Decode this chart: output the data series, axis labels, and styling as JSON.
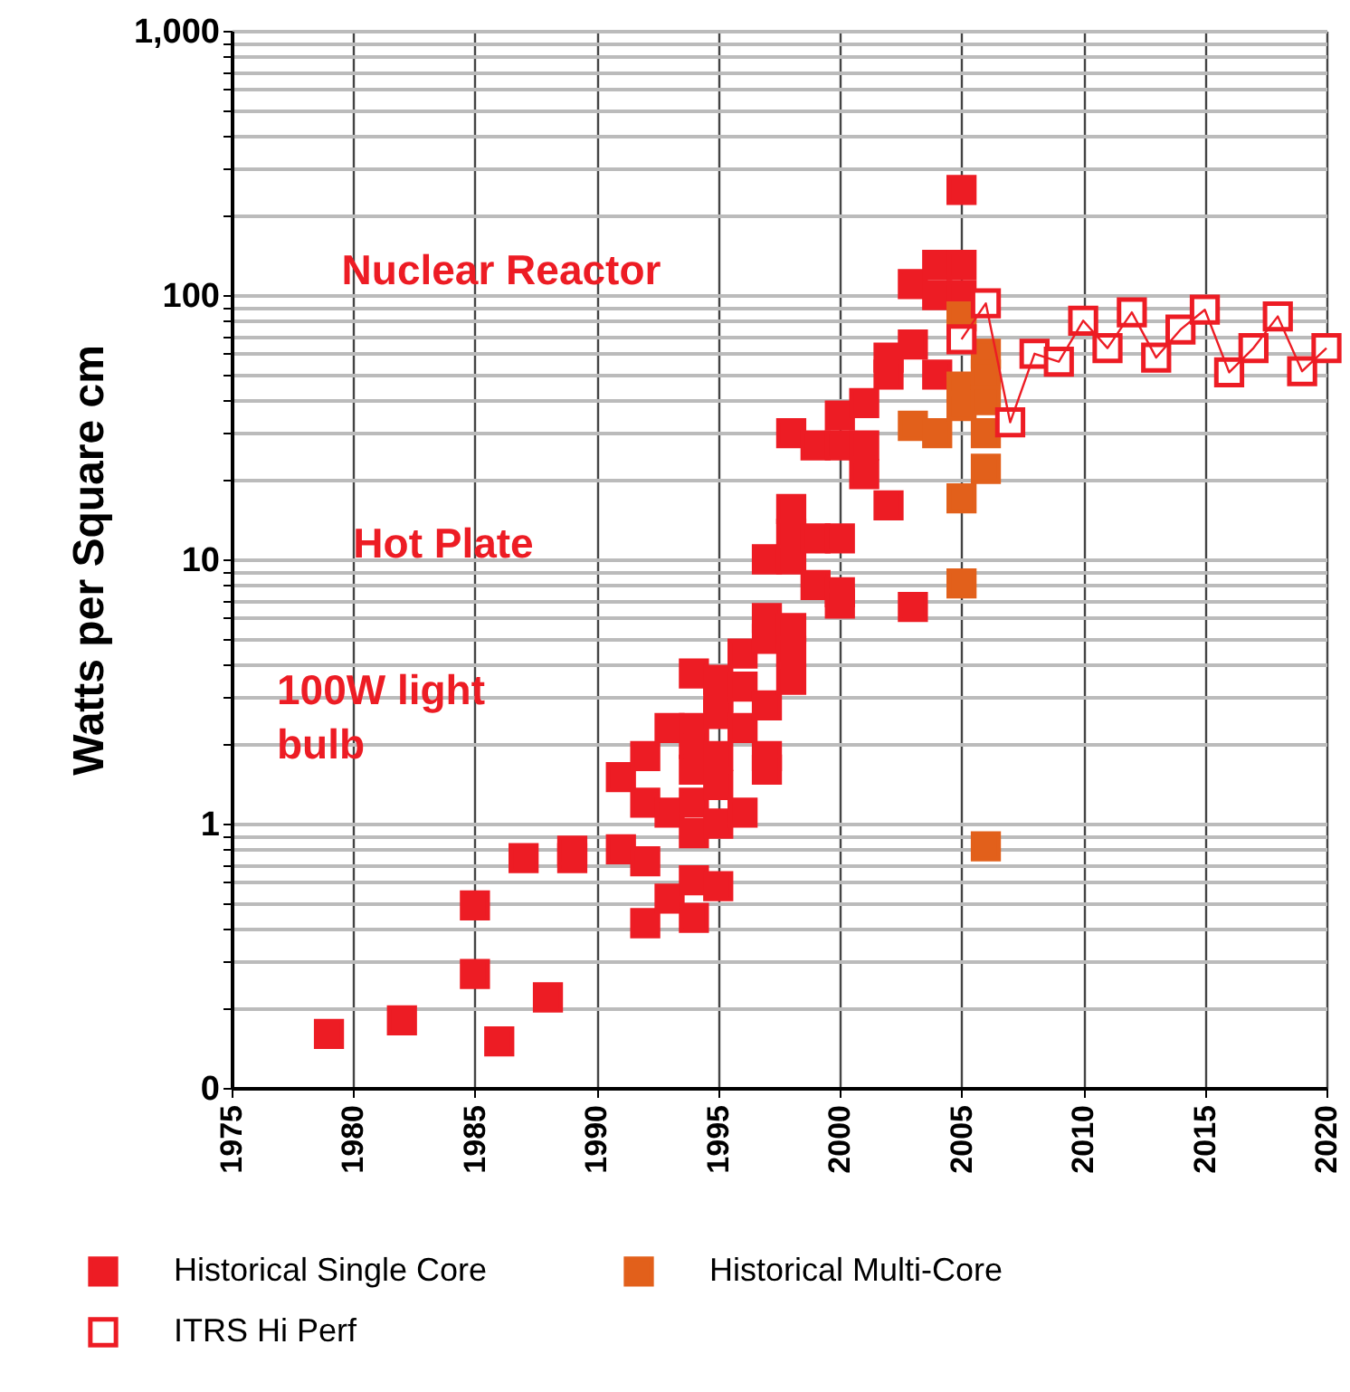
{
  "chart_data": {
    "type": "scatter",
    "ylabel": "Watts per Square cm",
    "log": "y",
    "grid": true,
    "legend": "bottom",
    "marker": "square",
    "xlim": [
      1975,
      2020
    ],
    "xticks": [
      1975,
      1980,
      1985,
      1990,
      1995,
      2000,
      2005,
      2010,
      2015,
      2020
    ],
    "ylim": [
      0.1,
      1000
    ],
    "yticks": [
      {
        "value": 0.1,
        "label": "0"
      },
      {
        "value": 0.2,
        "label": null
      },
      {
        "value": 0.3,
        "label": null
      },
      {
        "value": 0.4,
        "label": null
      },
      {
        "value": 0.5,
        "label": null
      },
      {
        "value": 0.6,
        "label": null
      },
      {
        "value": 0.7,
        "label": null
      },
      {
        "value": 0.8,
        "label": null
      },
      {
        "value": 0.9,
        "label": null
      },
      1,
      {
        "value": 2,
        "label": null
      },
      {
        "value": 3,
        "label": null
      },
      {
        "value": 4,
        "label": null
      },
      {
        "value": 5,
        "label": null
      },
      {
        "value": 6,
        "label": null
      },
      {
        "value": 7,
        "label": null
      },
      {
        "value": 8,
        "label": null
      },
      {
        "value": 9,
        "label": null
      },
      10,
      {
        "value": 20,
        "label": null
      },
      {
        "value": 30,
        "label": null
      },
      {
        "value": 40,
        "label": null
      },
      {
        "value": 50,
        "label": null
      },
      {
        "value": 60,
        "label": null
      },
      {
        "value": 70,
        "label": null
      },
      {
        "value": 80,
        "label": null
      },
      {
        "value": 90,
        "label": null
      },
      100,
      {
        "value": 200,
        "label": null
      },
      {
        "value": 300,
        "label": null
      },
      {
        "value": 400,
        "label": null
      },
      {
        "value": 500,
        "label": null
      },
      {
        "value": 600,
        "label": null
      },
      {
        "value": 700,
        "label": null
      },
      {
        "value": 800,
        "label": null
      },
      {
        "value": 900,
        "label": null
      },
      {
        "value": 1000,
        "label": "1,000"
      }
    ],
    "annotations": [
      "Nuclear Reactor",
      "Hot Plate",
      "100W light bulb"
    ],
    "series": [
      {
        "name": "Historical Single Core",
        "type": "scatter",
        "color": "#ed1c24",
        "x": [
          1979,
          1982,
          1985,
          1985,
          1986,
          1987,
          1988,
          1989,
          1989,
          1991,
          1991,
          1992,
          1992,
          1992,
          1992,
          1993,
          1993,
          1993,
          1994,
          1994,
          1994,
          1994,
          1994,
          1994,
          1994,
          1994,
          1995,
          1995,
          1995,
          1995,
          1995,
          1995,
          1995,
          1996,
          1996,
          1996,
          1996,
          1997,
          1997,
          1997,
          1997,
          1997,
          1997,
          1998,
          1998,
          1998,
          1998,
          1998,
          1998,
          1998,
          1999,
          1999,
          1999,
          2000,
          2000,
          2000,
          2000,
          2000,
          2001,
          2001,
          2001,
          2002,
          2002,
          2002,
          2003,
          2003,
          2003,
          2004,
          2004,
          2004,
          2005,
          2005,
          2005
        ],
        "values": [
          0.16,
          0.18,
          0.49,
          0.27,
          0.15,
          0.74,
          0.22,
          0.74,
          0.79,
          1.5,
          0.8,
          1.8,
          1.2,
          0.72,
          0.42,
          2.3,
          1.1,
          0.52,
          3.7,
          2.3,
          2.0,
          1.6,
          1.2,
          0.92,
          0.61,
          0.44,
          3.5,
          3.0,
          2.6,
          1.8,
          1.4,
          1.0,
          0.58,
          4.4,
          3.3,
          2.3,
          1.1,
          10,
          6,
          5,
          2.8,
          1.8,
          1.6,
          30,
          15.5,
          12.5,
          10,
          5.5,
          4.5,
          3.5,
          27,
          12,
          8,
          35,
          27,
          12,
          7.5,
          6.8,
          39,
          27,
          21,
          58,
          50,
          16,
          110,
          65,
          6.6,
          130,
          100,
          50,
          250,
          130,
          100
        ]
      },
      {
        "name": "Historical Multi-Core",
        "type": "scatter",
        "color": "#e2601b",
        "x": [
          2003,
          2004,
          2005,
          2005,
          2005,
          2005,
          2005,
          2006,
          2006,
          2006,
          2006,
          2006,
          2006
        ],
        "values": [
          32,
          30,
          83,
          45,
          38,
          17,
          8.1,
          60,
          50,
          40,
          30,
          22,
          0.82
        ]
      },
      {
        "name": "ITRS Hi Perf",
        "type": "line",
        "line_style": "solid",
        "color": "#ed1c24",
        "x": [
          2005,
          2006,
          2007,
          2008,
          2009,
          2010,
          2011,
          2012,
          2013,
          2014,
          2015,
          2016,
          2017,
          2018,
          2019,
          2020
        ],
        "values": [
          68,
          93,
          33,
          60,
          56,
          80,
          63,
          86,
          58,
          74,
          88,
          51,
          63,
          83,
          51.5,
          63
        ]
      }
    ]
  }
}
